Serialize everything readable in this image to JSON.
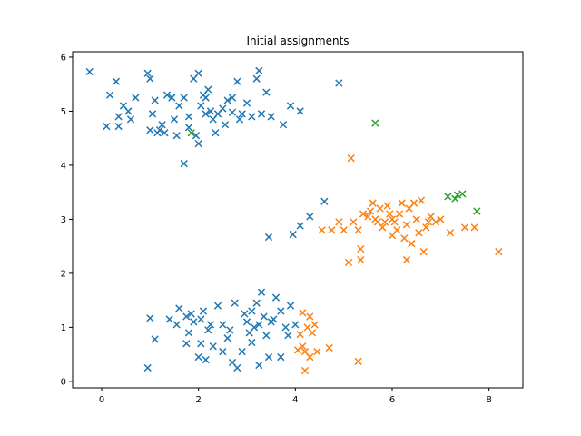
{
  "chart_data": {
    "type": "scatter",
    "title": "Initial assignments",
    "xlabel": "",
    "ylabel": "",
    "xlim": [
      -0.6,
      8.7
    ],
    "ylim": [
      -0.12,
      6.1
    ],
    "xticks": [
      0,
      2,
      4,
      6,
      8
    ],
    "yticks": [
      0,
      1,
      2,
      3,
      4,
      5,
      6
    ],
    "marker": "x",
    "grid": false,
    "series": [
      {
        "color": "#1f77b4",
        "points": [
          [
            -0.25,
            5.73
          ],
          [
            0.17,
            5.3
          ],
          [
            0.3,
            5.55
          ],
          [
            0.35,
            4.9
          ],
          [
            0.45,
            5.1
          ],
          [
            0.55,
            5.0
          ],
          [
            0.6,
            4.85
          ],
          [
            0.7,
            5.25
          ],
          [
            0.1,
            4.72
          ],
          [
            0.35,
            4.72
          ],
          [
            0.95,
            5.7
          ],
          [
            1.0,
            5.6
          ],
          [
            1.05,
            4.95
          ],
          [
            1.1,
            5.2
          ],
          [
            1.2,
            4.65
          ],
          [
            1.3,
            4.6
          ],
          [
            1.35,
            5.3
          ],
          [
            1.45,
            5.25
          ],
          [
            1.5,
            4.85
          ],
          [
            1.6,
            5.1
          ],
          [
            1.7,
            5.25
          ],
          [
            1.8,
            4.9
          ],
          [
            1.9,
            5.6
          ],
          [
            2.0,
            5.7
          ],
          [
            2.05,
            5.1
          ],
          [
            2.1,
            5.3
          ],
          [
            2.15,
            4.95
          ],
          [
            2.2,
            5.4
          ],
          [
            2.25,
            5.0
          ],
          [
            2.3,
            4.85
          ],
          [
            2.4,
            4.95
          ],
          [
            2.5,
            5.05
          ],
          [
            2.6,
            5.2
          ],
          [
            2.7,
            5.25
          ],
          [
            2.8,
            5.55
          ],
          [
            2.9,
            4.95
          ],
          [
            3.0,
            5.15
          ],
          [
            3.1,
            4.9
          ],
          [
            3.2,
            5.6
          ],
          [
            3.25,
            5.75
          ],
          [
            3.4,
            5.35
          ],
          [
            3.5,
            4.9
          ],
          [
            3.9,
            5.1
          ],
          [
            4.1,
            5.0
          ],
          [
            3.75,
            4.75
          ],
          [
            4.9,
            5.52
          ],
          [
            1.7,
            4.03
          ],
          [
            1.0,
            4.65
          ],
          [
            1.25,
            4.75
          ],
          [
            1.55,
            4.55
          ],
          [
            2.0,
            4.4
          ],
          [
            2.35,
            4.6
          ],
          [
            2.85,
            4.85
          ],
          [
            3.3,
            4.95
          ],
          [
            1.8,
            4.7
          ],
          [
            2.55,
            4.75
          ],
          [
            1.95,
            4.55
          ],
          [
            2.15,
            5.25
          ],
          [
            1.15,
            4.6
          ],
          [
            2.7,
            4.98
          ],
          [
            3.45,
            2.67
          ],
          [
            3.95,
            2.72
          ],
          [
            4.1,
            2.88
          ],
          [
            4.3,
            3.05
          ],
          [
            4.6,
            3.33
          ],
          [
            0.95,
            0.25
          ],
          [
            1.0,
            1.17
          ],
          [
            1.1,
            0.78
          ],
          [
            1.4,
            1.15
          ],
          [
            1.55,
            1.05
          ],
          [
            1.6,
            1.35
          ],
          [
            1.75,
            1.2
          ],
          [
            1.8,
            0.9
          ],
          [
            1.9,
            1.1
          ],
          [
            2.0,
            0.45
          ],
          [
            2.05,
            0.7
          ],
          [
            2.1,
            1.3
          ],
          [
            2.2,
            0.95
          ],
          [
            2.3,
            0.65
          ],
          [
            2.4,
            1.4
          ],
          [
            2.5,
            1.05
          ],
          [
            2.6,
            0.8
          ],
          [
            2.7,
            0.35
          ],
          [
            2.75,
            1.45
          ],
          [
            2.8,
            0.25
          ],
          [
            2.9,
            0.55
          ],
          [
            3.0,
            1.1
          ],
          [
            3.05,
            0.9
          ],
          [
            3.1,
            1.3
          ],
          [
            3.15,
            1.0
          ],
          [
            3.2,
            1.45
          ],
          [
            3.25,
            0.3
          ],
          [
            3.3,
            1.65
          ],
          [
            3.35,
            1.2
          ],
          [
            3.4,
            0.85
          ],
          [
            3.5,
            1.1
          ],
          [
            3.6,
            1.55
          ],
          [
            3.7,
            1.3
          ],
          [
            3.8,
            1.0
          ],
          [
            3.9,
            1.4
          ],
          [
            4.0,
            1.05
          ],
          [
            3.7,
            0.45
          ],
          [
            3.45,
            0.45
          ],
          [
            1.75,
            0.7
          ],
          [
            2.15,
            0.4
          ],
          [
            2.5,
            0.55
          ],
          [
            3.1,
            0.72
          ],
          [
            2.25,
            1.05
          ],
          [
            1.85,
            1.25
          ],
          [
            2.95,
            1.25
          ],
          [
            3.55,
            1.15
          ],
          [
            2.65,
            0.95
          ],
          [
            3.25,
            1.05
          ],
          [
            2.05,
            1.15
          ],
          [
            3.85,
            0.85
          ]
        ]
      },
      {
        "color": "#ff7f0e",
        "points": [
          [
            4.15,
            1.27
          ],
          [
            4.2,
            0.55
          ],
          [
            4.25,
            1.0
          ],
          [
            4.3,
            1.2
          ],
          [
            4.4,
            1.05
          ],
          [
            4.45,
            0.55
          ],
          [
            4.1,
            0.87
          ],
          [
            4.2,
            0.2
          ],
          [
            4.05,
            0.58
          ],
          [
            4.7,
            0.62
          ],
          [
            5.3,
            0.37
          ],
          [
            4.3,
            0.45
          ],
          [
            4.15,
            0.65
          ],
          [
            4.35,
            0.9
          ],
          [
            4.9,
            2.95
          ],
          [
            5.0,
            2.8
          ],
          [
            5.1,
            2.2
          ],
          [
            5.2,
            2.95
          ],
          [
            5.3,
            2.8
          ],
          [
            5.35,
            2.45
          ],
          [
            5.4,
            3.1
          ],
          [
            5.5,
            3.05
          ],
          [
            5.6,
            3.3
          ],
          [
            5.7,
            2.95
          ],
          [
            5.75,
            3.2
          ],
          [
            5.8,
            2.85
          ],
          [
            5.9,
            3.25
          ],
          [
            6.0,
            2.7
          ],
          [
            6.05,
            2.95
          ],
          [
            6.1,
            2.8
          ],
          [
            6.2,
            3.3
          ],
          [
            6.25,
            2.65
          ],
          [
            6.3,
            2.9
          ],
          [
            6.35,
            3.2
          ],
          [
            6.4,
            2.55
          ],
          [
            6.5,
            3.0
          ],
          [
            6.55,
            2.75
          ],
          [
            6.6,
            3.35
          ],
          [
            6.7,
            2.85
          ],
          [
            6.8,
            3.05
          ],
          [
            6.9,
            2.95
          ],
          [
            7.0,
            3.0
          ],
          [
            7.2,
            2.75
          ],
          [
            7.5,
            2.85
          ],
          [
            7.7,
            2.85
          ],
          [
            8.2,
            2.4
          ],
          [
            5.15,
            4.13
          ],
          [
            6.3,
            2.25
          ],
          [
            6.65,
            2.4
          ],
          [
            5.35,
            2.25
          ],
          [
            4.75,
            2.8
          ],
          [
            4.55,
            2.8
          ],
          [
            5.55,
            3.15
          ],
          [
            5.95,
            3.1
          ],
          [
            6.15,
            3.1
          ],
          [
            6.45,
            3.3
          ],
          [
            5.85,
            2.95
          ],
          [
            6.0,
            3.0
          ],
          [
            5.65,
            3.0
          ],
          [
            6.75,
            2.95
          ]
        ]
      },
      {
        "color": "#2ca02c",
        "points": [
          [
            1.85,
            4.6
          ],
          [
            5.65,
            4.78
          ],
          [
            7.15,
            3.42
          ],
          [
            7.3,
            3.38
          ],
          [
            7.35,
            3.45
          ],
          [
            7.45,
            3.47
          ],
          [
            7.75,
            3.15
          ]
        ]
      }
    ]
  }
}
